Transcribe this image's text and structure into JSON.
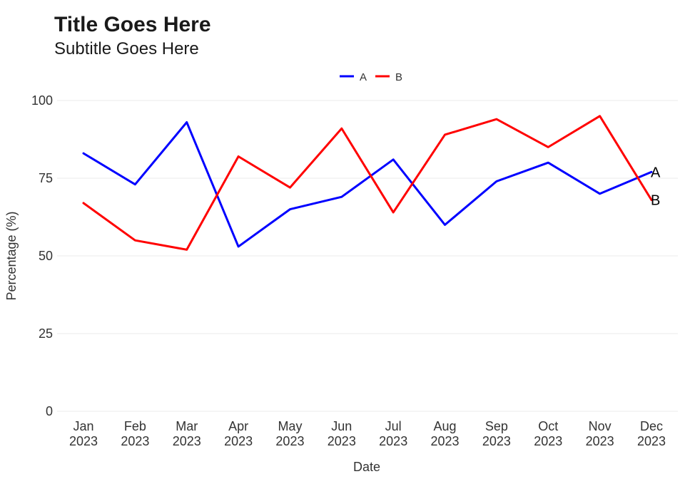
{
  "chart_data": {
    "type": "line",
    "title": "Title Goes Here",
    "subtitle": "Subtitle Goes Here",
    "xlabel": "Date",
    "ylabel": "Percentage (%)",
    "ylim": [
      0,
      100
    ],
    "yticks": [
      "0",
      "25",
      "50",
      "75",
      "100"
    ],
    "categories": [
      [
        "Jan",
        "2023"
      ],
      [
        "Feb",
        "2023"
      ],
      [
        "Mar",
        "2023"
      ],
      [
        "Apr",
        "2023"
      ],
      [
        "May",
        "2023"
      ],
      [
        "Jun",
        "2023"
      ],
      [
        "Jul",
        "2023"
      ],
      [
        "Aug",
        "2023"
      ],
      [
        "Sep",
        "2023"
      ],
      [
        "Oct",
        "2023"
      ],
      [
        "Nov",
        "2023"
      ],
      [
        "Dec",
        "2023"
      ]
    ],
    "series": [
      {
        "name": "A",
        "color": "#0000ff",
        "values": [
          83,
          73,
          93,
          53,
          65,
          69,
          81,
          60,
          74,
          80,
          70,
          77
        ]
      },
      {
        "name": "B",
        "color": "#ff0000",
        "values": [
          67,
          55,
          52,
          82,
          72,
          91,
          64,
          89,
          94,
          85,
          95,
          68
        ]
      }
    ],
    "legend": "top-center",
    "grid": true
  }
}
